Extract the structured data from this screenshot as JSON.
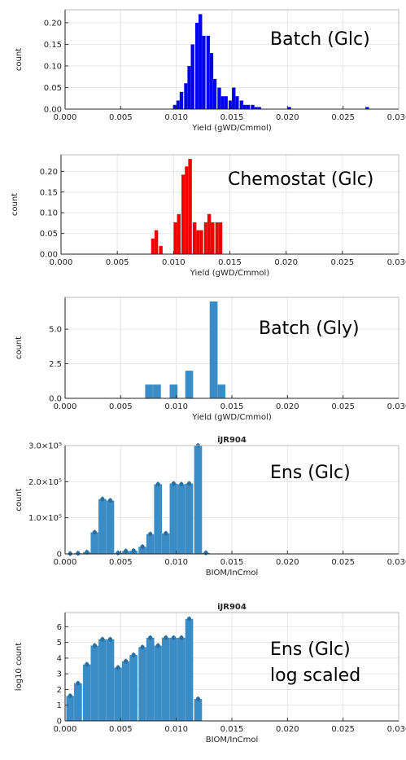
{
  "chart_data": [
    {
      "type": "bar",
      "title": "",
      "annotation": [
        "Batch (Glc)"
      ],
      "xlabel": "Yield (gWD/Cmmol)",
      "ylabel": "count",
      "xlim": [
        0,
        0.03
      ],
      "ylim": [
        0,
        0.23
      ],
      "x_ticks": [
        "0.000",
        "0.005",
        "0.010",
        "0.015",
        "0.020",
        "0.025",
        "0.030"
      ],
      "y_ticks": [
        {
          "v": 0,
          "t": "0.00"
        },
        {
          "v": 0.05,
          "t": "0.05"
        },
        {
          "v": 0.1,
          "t": "0.10"
        },
        {
          "v": 0.15,
          "t": "0.15"
        },
        {
          "v": 0.2,
          "t": "0.20"
        }
      ],
      "grid": true,
      "legend": "none",
      "bin_width": 0.00033,
      "error_bars": false,
      "color": "#0000ee",
      "x": [
        0.0097,
        0.01,
        0.0103,
        0.0107,
        0.011,
        0.0113,
        0.0117,
        0.012,
        0.0123,
        0.0127,
        0.013,
        0.0133,
        0.0137,
        0.014,
        0.0143,
        0.0147,
        0.015,
        0.0153,
        0.0157,
        0.016,
        0.0163,
        0.0167,
        0.017,
        0.0173,
        0.02,
        0.027
      ],
      "values": [
        0.01,
        0.02,
        0.04,
        0.06,
        0.1,
        0.15,
        0.2,
        0.22,
        0.17,
        0.17,
        0.13,
        0.07,
        0.05,
        0.03,
        0.03,
        0.02,
        0.05,
        0.03,
        0.02,
        0.01,
        0.01,
        0.01,
        0.005,
        0.005,
        0.005,
        0.005
      ]
    },
    {
      "type": "bar",
      "title": "",
      "annotation": [
        "Chemostat (Glc)"
      ],
      "xlabel": "Yield (gWD/Cmmol)",
      "ylabel": "count",
      "xlim": [
        0,
        0.03
      ],
      "ylim": [
        0,
        0.24
      ],
      "x_ticks": [
        "0.000",
        "0.005",
        "0.010",
        "0.015",
        "0.020",
        "0.025",
        "0.030"
      ],
      "y_ticks": [
        {
          "v": 0,
          "t": "0.00"
        },
        {
          "v": 0.05,
          "t": "0.05"
        },
        {
          "v": 0.1,
          "t": "0.10"
        },
        {
          "v": 0.15,
          "t": "0.15"
        },
        {
          "v": 0.2,
          "t": "0.20"
        }
      ],
      "grid": true,
      "legend": "none",
      "bin_width": 0.00033,
      "error_bars": false,
      "color": "#ee0000",
      "x": [
        0.008,
        0.0083,
        0.0087,
        0.01,
        0.0103,
        0.0107,
        0.011,
        0.0113,
        0.0117,
        0.012,
        0.0123,
        0.0127,
        0.013,
        0.0133,
        0.0137,
        0.014
      ],
      "values": [
        0.038,
        0.058,
        0.02,
        0.077,
        0.097,
        0.192,
        0.212,
        0.23,
        0.077,
        0.058,
        0.058,
        0.077,
        0.097,
        0.077,
        0.077,
        0.077
      ]
    },
    {
      "type": "bar",
      "title": "",
      "annotation": [
        "Batch (Gly)"
      ],
      "xlabel": "Yield (gWD/Cmmol)",
      "ylabel": "count",
      "xlim": [
        0,
        0.03
      ],
      "ylim": [
        0,
        7.3
      ],
      "x_ticks": [
        "0.000",
        "0.005",
        "0.010",
        "0.015",
        "0.020",
        "0.025",
        "0.030"
      ],
      "y_ticks": [
        {
          "v": 0,
          "t": "0.0"
        },
        {
          "v": 2.5,
          "t": "2.5"
        },
        {
          "v": 5,
          "t": "5.0"
        }
      ],
      "grid": true,
      "legend": "none",
      "bin_width": 0.00072,
      "error_bars": false,
      "color": "#3a8cc6",
      "x": [
        0.0072,
        0.0079,
        0.0094,
        0.0108,
        0.013,
        0.0137
      ],
      "values": [
        1,
        1,
        1,
        2,
        7,
        1
      ]
    },
    {
      "type": "bar",
      "title": "iJR904",
      "annotation": [
        "Ens (Glc)"
      ],
      "xlabel": "BIOM/InCmol",
      "ylabel": "count",
      "xlim": [
        0,
        0.03
      ],
      "ylim": [
        0,
        300000
      ],
      "x_ticks": [
        "0.000",
        "0.005",
        "0.010",
        "0.015",
        "0.020",
        "0.025",
        "0.030"
      ],
      "y_ticks": [
        {
          "v": 0,
          "t": "0"
        },
        {
          "v": 100000,
          "t": "1.0×10⁵"
        },
        {
          "v": 200000,
          "t": "2.0×10⁵"
        },
        {
          "v": 300000,
          "t": "3.0×10⁵"
        }
      ],
      "grid": true,
      "legend": "none",
      "bin_width": 0.00072,
      "error_bars": true,
      "color": "#3a8cc6",
      "x": [
        0.0001,
        0.0008,
        0.0016,
        0.0023,
        0.003,
        0.0037,
        0.0044,
        0.0051,
        0.0058,
        0.0066,
        0.0073,
        0.008,
        0.0087,
        0.0094,
        0.0101,
        0.0108,
        0.0116,
        0.0123,
        0.013,
        0.0137
      ],
      "values": [
        1000,
        2000,
        5000,
        60000,
        152000,
        148000,
        3000,
        8000,
        9000,
        20000,
        55000,
        193000,
        57000,
        195000,
        193000,
        195000,
        300000,
        3000,
        0,
        0
      ]
    },
    {
      "type": "bar",
      "title": "iJR904",
      "annotation": [
        "Ens (Glc)",
        "log scaled"
      ],
      "xlabel": "BIOM/InCmol",
      "ylabel": "log10 count",
      "xlim": [
        0,
        0.03
      ],
      "ylim": [
        0,
        6.9
      ],
      "x_ticks": [
        "0.000",
        "0.005",
        "0.010",
        "0.015",
        "0.020",
        "0.025",
        "0.030"
      ],
      "y_ticks": [
        {
          "v": 0,
          "t": "0"
        },
        {
          "v": 1,
          "t": "1"
        },
        {
          "v": 2,
          "t": "2"
        },
        {
          "v": 3,
          "t": "3"
        },
        {
          "v": 4,
          "t": "4"
        },
        {
          "v": 5,
          "t": "5"
        },
        {
          "v": 6,
          "t": "6"
        }
      ],
      "grid": true,
      "legend": "none",
      "bin_width": 0.00072,
      "error_bars": true,
      "color": "#3a8cc6",
      "x": [
        0.0001,
        0.0008,
        0.0016,
        0.0023,
        0.003,
        0.0037,
        0.0044,
        0.0051,
        0.0058,
        0.0066,
        0.0073,
        0.008,
        0.0087,
        0.0094,
        0.0101,
        0.0108,
        0.0116,
        0.0123,
        0.013
      ],
      "values": [
        1.6,
        2.4,
        3.6,
        4.8,
        5.2,
        5.2,
        3.4,
        3.8,
        4.2,
        4.7,
        5.3,
        4.8,
        5.3,
        5.3,
        5.3,
        6.5,
        1.4,
        0,
        0
      ]
    }
  ]
}
